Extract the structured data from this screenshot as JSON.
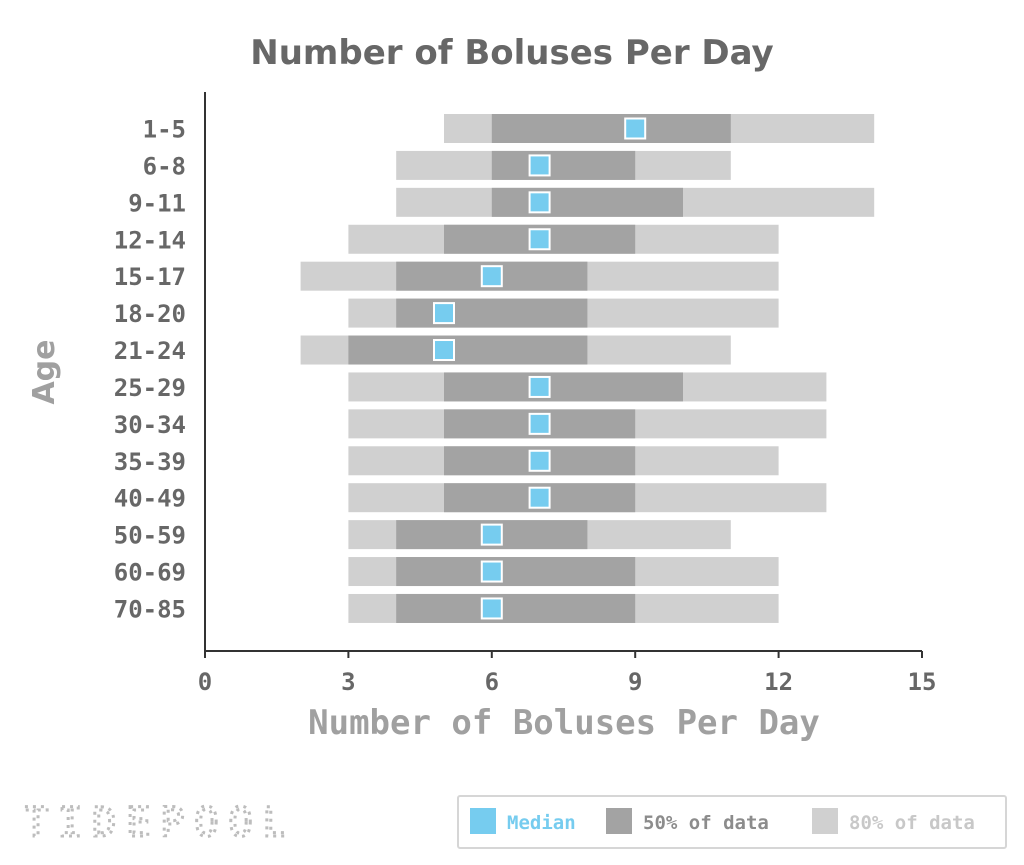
{
  "chart_data": {
    "type": "bar",
    "title": "Number of Boluses Per Day",
    "xlabel": "Number of Boluses Per Day",
    "ylabel": "Age",
    "xlim": [
      0,
      15
    ],
    "x_ticks": [
      "0",
      "3",
      "6",
      "9",
      "12",
      "15"
    ],
    "x_tick_values": [
      0,
      3,
      6,
      9,
      12,
      15
    ],
    "grid": false,
    "categories": [
      "1-5",
      "6-8",
      "9-11",
      "12-14",
      "15-17",
      "18-20",
      "21-24",
      "25-29",
      "30-34",
      "35-39",
      "40-49",
      "50-59",
      "60-69",
      "70-85"
    ],
    "series": [
      {
        "name": "80% of data",
        "color": "#d0d0d0",
        "low": [
          5,
          4,
          4,
          3,
          2,
          3,
          2,
          3,
          3,
          3,
          3,
          3,
          3,
          3
        ],
        "high": [
          14,
          11,
          14,
          12,
          12,
          12,
          11,
          13,
          13,
          12,
          13,
          11,
          12,
          12
        ]
      },
      {
        "name": "50% of data",
        "color": "#a3a3a3",
        "low": [
          6,
          6,
          6,
          5,
          4,
          4,
          3,
          5,
          5,
          5,
          5,
          4,
          4,
          4
        ],
        "high": [
          11,
          9,
          10,
          9,
          8,
          8,
          8,
          10,
          9,
          9,
          9,
          8,
          9,
          9
        ]
      },
      {
        "name": "Median",
        "color": "#76ccef",
        "values": [
          9,
          7,
          7,
          7,
          6,
          5,
          5,
          7,
          7,
          7,
          7,
          6,
          6,
          6
        ]
      }
    ],
    "legend": {
      "position": "bottom-right",
      "items": [
        {
          "label": "Median",
          "color": "#76ccef",
          "text_color": "#76ccef"
        },
        {
          "label": "50% of data",
          "color": "#a3a3a3",
          "text_color": "#8c8c8c"
        },
        {
          "label": "80% of data",
          "color": "#d0d0d0",
          "text_color": "#c8c8c8"
        }
      ]
    }
  },
  "branding": {
    "logo_text": "TIDEPOOL"
  }
}
